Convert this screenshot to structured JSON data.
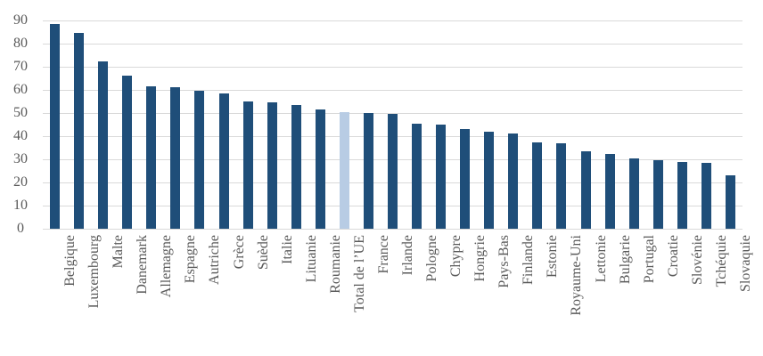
{
  "chart_data": {
    "type": "bar",
    "title": "",
    "categories": [
      "Belgique",
      "Luxembourg",
      "Malte",
      "Danemark",
      "Allemagne",
      "Espagne",
      "Autriche",
      "Grèce",
      "Suède",
      "Italie",
      "Lituanie",
      "Roumanie",
      "Total de l’UE",
      "France",
      "Irlande",
      "Pologne",
      "Chypre",
      "Hongrie",
      "Pays-Bas",
      "Finlande",
      "Estonie",
      "Royaume-Uni",
      "Lettonie",
      "Bulgarie",
      "Portugal",
      "Croatie",
      "Slovénie",
      "Tchéquie",
      "Slovaquie"
    ],
    "values": [
      88.5,
      84.5,
      72.5,
      66,
      61.5,
      61,
      59.5,
      58.5,
      55,
      54.5,
      53.5,
      51.5,
      50.5,
      50,
      49.5,
      45.5,
      45,
      43,
      42,
      41,
      37.5,
      37,
      33.5,
      32.5,
      30.5,
      29.5,
      29,
      28.5,
      23
    ],
    "highlight_category": "Total de l’UE",
    "highlight_index": 12,
    "yticks": [
      0,
      10,
      20,
      30,
      40,
      50,
      60,
      70,
      80,
      90
    ],
    "ylim": [
      0,
      90
    ],
    "grid": true,
    "xlabel": "",
    "ylabel": "",
    "legend_position": "none",
    "colors": {
      "bar": "#1f4e79",
      "highlight_bar": "#b8cce4",
      "gridline": "#d9d9d9",
      "axis_label": "#595959",
      "background": "#ffffff"
    }
  }
}
